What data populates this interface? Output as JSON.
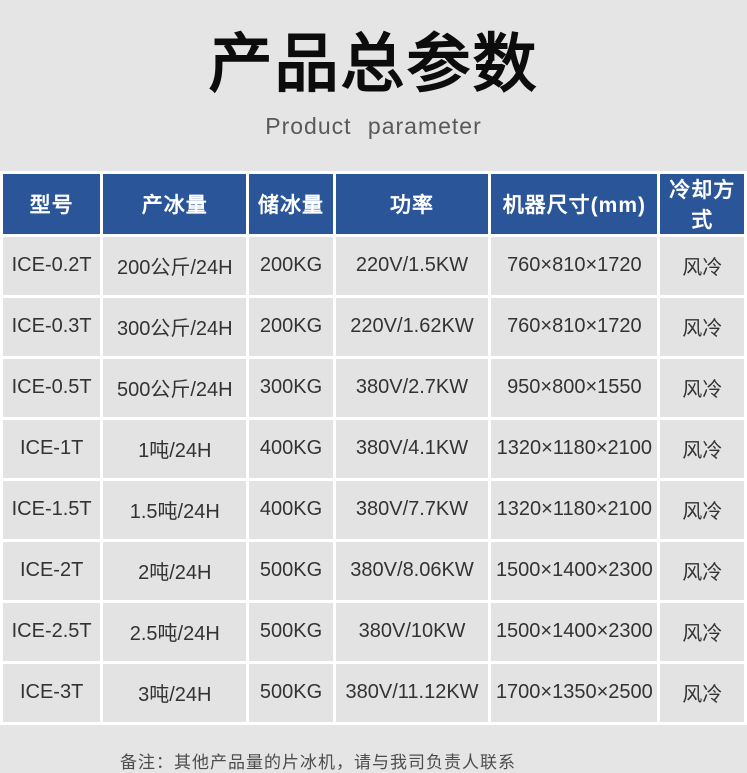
{
  "page": {
    "title": "产品总参数",
    "subtitle": "Product parameter",
    "note": "备注：其他产品量的片冰机，请与我司负责人联系"
  },
  "table": {
    "headers": [
      "型号",
      "产冰量",
      "储冰量",
      "功率",
      "机器尺寸(mm)",
      "冷却方式"
    ],
    "rows": [
      [
        "ICE-0.2T",
        "200公斤/24H",
        "200KG",
        "220V/1.5KW",
        "760×810×1720",
        "风冷"
      ],
      [
        "ICE-0.3T",
        "300公斤/24H",
        "200KG",
        "220V/1.62KW",
        "760×810×1720",
        "风冷"
      ],
      [
        "ICE-0.5T",
        "500公斤/24H",
        "300KG",
        "380V/2.7KW",
        "950×800×1550",
        "风冷"
      ],
      [
        "ICE-1T",
        "1吨/24H",
        "400KG",
        "380V/4.1KW",
        "1320×1180×2100",
        "风冷"
      ],
      [
        "ICE-1.5T",
        "1.5吨/24H",
        "400KG",
        "380V/7.7KW",
        "1320×1180×2100",
        "风冷"
      ],
      [
        "ICE-2T",
        "2吨/24H",
        "500KG",
        "380V/8.06KW",
        "1500×1400×2300",
        "风冷"
      ],
      [
        "ICE-2.5T",
        "2.5吨/24H",
        "500KG",
        "380V/10KW",
        "1500×1400×2300",
        "风冷"
      ],
      [
        "ICE-3T",
        "3吨/24H",
        "500KG",
        "380V/11.12KW",
        "1700×1350×2500",
        "风冷"
      ]
    ]
  },
  "colors": {
    "header_bg": "#2a5599",
    "header_text": "#ffffff",
    "page_bg": "#e5e5e5",
    "cell_bg": "#e3e3e3",
    "grid_line": "#ffffff",
    "title_text": "#0c0c0c",
    "subtitle_text": "#595959"
  }
}
